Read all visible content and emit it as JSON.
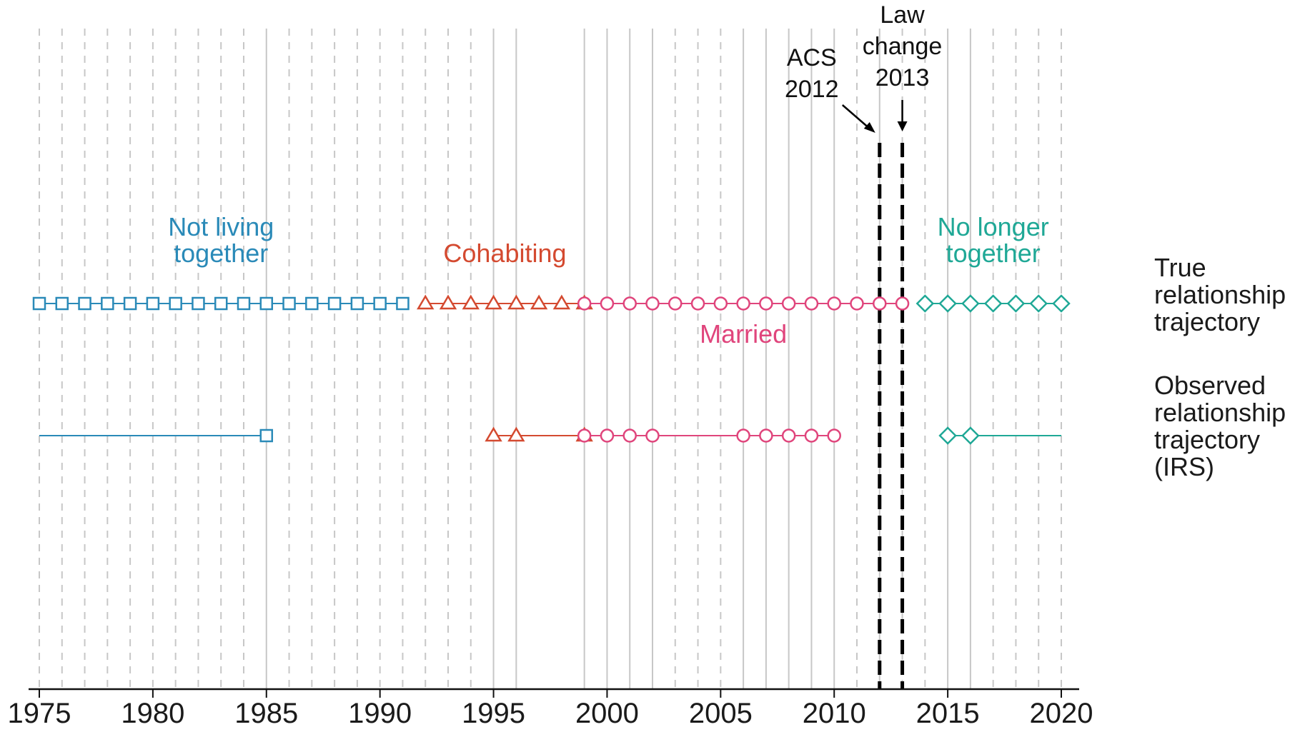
{
  "chart_data": {
    "type": "scatter",
    "title": "",
    "xlabel": "",
    "ylabel": "",
    "xlim": [
      1975,
      2020
    ],
    "x_ticks": [
      1975,
      1980,
      1985,
      1990,
      1995,
      2000,
      2005,
      2010,
      2015,
      2020
    ],
    "x_tick_labels": [
      "1975",
      "1980",
      "1985",
      "1990",
      "1995",
      "2000",
      "2005",
      "2010",
      "2015",
      "2020"
    ],
    "gridlines": {
      "dashed_years": [
        1975,
        1976,
        1977,
        1978,
        1979,
        1980,
        1981,
        1982,
        1983,
        1984,
        1986,
        1987,
        1988,
        1989,
        1990,
        1991,
        1992,
        1993,
        1994,
        2003,
        2004,
        2005,
        2011,
        2013,
        2014,
        2017,
        2018,
        2019,
        2020
      ],
      "solid_years": [
        1985,
        1995,
        1996,
        1999,
        2000,
        2001,
        2002,
        2006,
        2007,
        2008,
        2009,
        2010,
        2012,
        2015,
        2016
      ]
    },
    "rows": [
      {
        "key": "true",
        "label_lines": [
          "True",
          "relationship",
          "trajectory"
        ]
      },
      {
        "key": "observed",
        "label_lines": [
          "Observed",
          "relationship",
          "trajectory",
          "(IRS)"
        ]
      }
    ],
    "states": [
      {
        "key": "not_living",
        "label_lines": [
          "Not living",
          "together"
        ],
        "marker": "square",
        "color": "#2a8ab8",
        "label_year": 1983
      },
      {
        "key": "cohabiting",
        "label_lines": [
          "Cohabiting"
        ],
        "marker": "triangle",
        "color": "#d44a30",
        "label_year": 1995.5
      },
      {
        "key": "married",
        "label_lines": [
          "Married"
        ],
        "marker": "circle",
        "color": "#e0457c",
        "label_year": 2006
      },
      {
        "key": "no_longer",
        "label_lines": [
          "No longer",
          "together"
        ],
        "marker": "diamond",
        "color": "#1fa896",
        "label_year": 2017
      }
    ],
    "series": [
      {
        "row": "true",
        "state": "not_living",
        "line": [
          1975,
          1991
        ],
        "points": [
          1975,
          1976,
          1977,
          1978,
          1979,
          1980,
          1981,
          1982,
          1983,
          1984,
          1985,
          1986,
          1987,
          1988,
          1989,
          1990,
          1991
        ]
      },
      {
        "row": "true",
        "state": "cohabiting",
        "line": [
          1992,
          1999
        ],
        "points": [
          1992,
          1993,
          1994,
          1995,
          1996,
          1997,
          1998,
          1999
        ]
      },
      {
        "row": "true",
        "state": "married",
        "line": [
          1999,
          2013
        ],
        "points": [
          1999,
          2000,
          2001,
          2002,
          2003,
          2004,
          2005,
          2006,
          2007,
          2008,
          2009,
          2010,
          2011,
          2012,
          2013
        ]
      },
      {
        "row": "true",
        "state": "no_longer",
        "line": [
          2014,
          2020
        ],
        "points": [
          2014,
          2015,
          2016,
          2017,
          2018,
          2019,
          2020
        ]
      },
      {
        "row": "observed",
        "state": "not_living",
        "line": [
          1975,
          1985
        ],
        "points": [
          1985
        ]
      },
      {
        "row": "observed",
        "state": "cohabiting",
        "line": [
          1995,
          1999
        ],
        "points": [
          1995,
          1996,
          1999
        ]
      },
      {
        "row": "observed",
        "state": "married",
        "line": [
          1999,
          2010
        ],
        "points": [
          1999,
          2000,
          2001,
          2002,
          2006,
          2007,
          2008,
          2009,
          2010
        ]
      },
      {
        "row": "observed",
        "state": "no_longer",
        "line": [
          2015,
          2020
        ],
        "points": [
          2015,
          2016
        ]
      }
    ],
    "annotations": [
      {
        "key": "acs",
        "label_lines": [
          "ACS",
          "2012"
        ],
        "year": 2012
      },
      {
        "key": "law",
        "label_lines": [
          "Law",
          "change",
          "2013"
        ],
        "year": 2013
      }
    ],
    "colors": {
      "grid": "#c7c7c7",
      "axis": "#111111",
      "event_line": "#000000"
    }
  }
}
